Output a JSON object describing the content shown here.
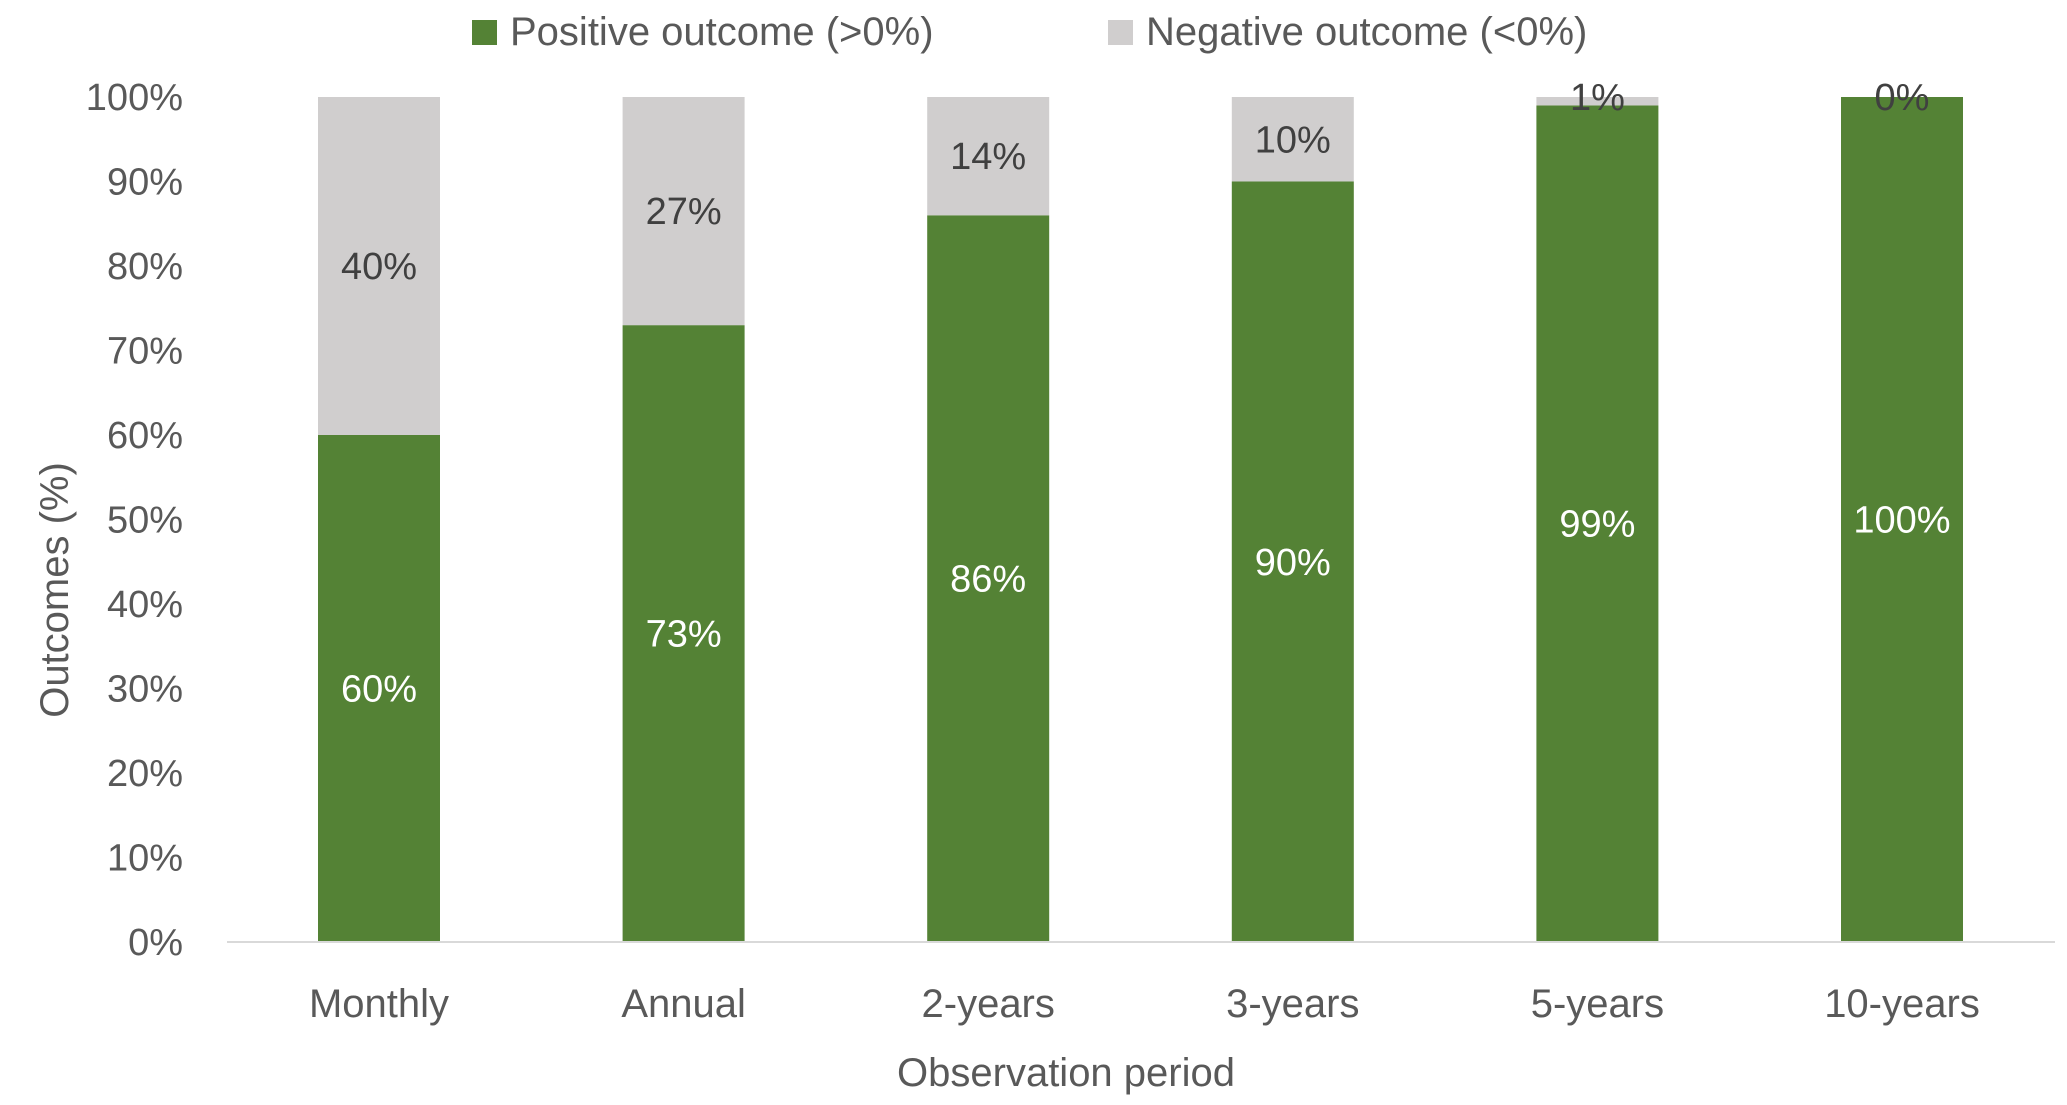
{
  "chart_data": {
    "type": "bar",
    "stacked": true,
    "categories": [
      "Monthly",
      "Annual",
      "2-years",
      "3-years",
      "5-years",
      "10-years"
    ],
    "series": [
      {
        "name": "Positive outcome (>0%)",
        "values": [
          60,
          73,
          86,
          90,
          99,
          100
        ],
        "labels": [
          "60%",
          "73%",
          "86%",
          "90%",
          "99%",
          "100%"
        ],
        "color": "#548235"
      },
      {
        "name": "Negative outcome (<0%)",
        "values": [
          40,
          27,
          14,
          10,
          1,
          0
        ],
        "labels": [
          "40%",
          "27%",
          "14%",
          "10%",
          "1%",
          "0%"
        ],
        "color": "#d0cece"
      }
    ],
    "yticks": [
      "0%",
      "10%",
      "20%",
      "30%",
      "40%",
      "50%",
      "60%",
      "70%",
      "80%",
      "90%",
      "100%"
    ],
    "ylim": [
      0,
      100
    ],
    "xlabel": "Observation period",
    "ylabel": "Outcomes (%)",
    "legend_position": "top",
    "grid": false
  }
}
